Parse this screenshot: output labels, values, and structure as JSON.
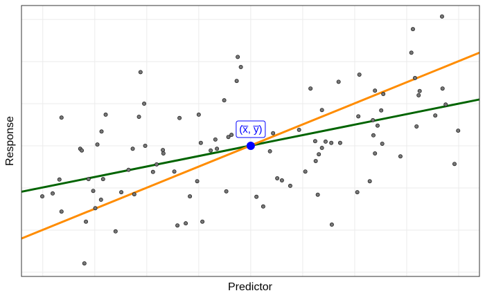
{
  "chart_data": {
    "type": "scatter",
    "x_label": "Predictor",
    "y_label": "Response",
    "xlim": [
      -0.41,
      8.4
    ],
    "ylim": [
      -3.1,
      3.33
    ],
    "x_gridlines": [
      0,
      1,
      2,
      3,
      4,
      5,
      6,
      7,
      8
    ],
    "y_gridlines": [
      -3,
      -2,
      -1,
      0,
      1,
      2,
      3
    ],
    "points": {
      "color": "#777777",
      "x": [
        7.68,
        7.12,
        7.09,
        3.75,
        3.81,
        1.88,
        6.09,
        7.16,
        3.73,
        5.69,
        7.69,
        5.15,
        6.39,
        7.25,
        6.55,
        7.23,
        3.49,
        7.75,
        1.95,
        5.37,
        6.51,
        1.21,
        3.0,
        6.07,
        7.55,
        0.36,
        1.85,
        2.63,
        6.35,
        6.44,
        7.19,
        7.99,
        1.13,
        4.93,
        4.43,
        6.36,
        3.63,
        3.57,
        3.32,
        5.24,
        5.44,
        3.04,
        5.55,
        5.72,
        6.53,
        1.05,
        1.97,
        0.72,
        1.73,
        3.35,
        2.31,
        0.75,
        3.23,
        2.32,
        4.37,
        5.37,
        6.39,
        5.31,
        5.25,
        6.88,
        2.19,
        1.65,
        5.05,
        7.92,
        2.12,
        2.53,
        4.51,
        4.6,
        0.88,
        1.16,
        0.32,
        6.29,
        2.97,
        4.76,
        0.97,
        1.51,
        3.53,
        6.05,
        1.76,
        0.19,
        -0.01,
        5.29,
        2.83,
        4.11,
        1.12,
        4.24,
        1.01,
        0.36,
        0.83,
        3.07,
        2.75,
        2.59,
        5.56,
        1.4,
        0.8
      ],
      "y": [
        3.07,
        2.77,
        2.21,
        2.11,
        1.87,
        1.75,
        1.69,
        1.61,
        1.54,
        1.52,
        1.36,
        1.36,
        1.31,
        1.3,
        1.23,
        1.2,
        1.08,
        0.98,
        1.0,
        0.85,
        0.84,
        0.74,
        0.74,
        0.7,
        0.72,
        0.67,
        0.69,
        0.66,
        0.61,
        0.48,
        0.46,
        0.36,
        0.34,
        0.38,
        0.3,
        0.25,
        0.26,
        0.21,
        0.15,
        0.11,
        0.1,
        0.07,
        0.07,
        0.07,
        0.05,
        0.03,
        0,
        -0.07,
        -0.07,
        -0.07,
        -0.1,
        -0.11,
        -0.11,
        -0.18,
        -0.13,
        -0.05,
        -0.18,
        -0.2,
        -0.36,
        -0.25,
        -0.44,
        -0.57,
        -0.61,
        -0.43,
        -0.62,
        -0.61,
        -0.77,
        -0.82,
        -0.79,
        -0.79,
        -0.8,
        -0.84,
        -0.84,
        -0.95,
        -1.07,
        -1.1,
        -1.08,
        -1.1,
        -1.15,
        -1.13,
        -1.2,
        -1.16,
        -1.2,
        -1.21,
        -1.28,
        -1.44,
        -1.48,
        -1.56,
        -1.8,
        -1.8,
        -1.84,
        -1.89,
        -1.87,
        -2.03,
        -2.79
      ]
    },
    "lines": [
      {
        "color": "#006400",
        "x": [
          -0.41,
          8.4
        ],
        "y": [
          -1.09,
          1.1
        ]
      },
      {
        "color": "#ff8c00",
        "x": [
          -0.41,
          8.4
        ],
        "y": [
          -2.2,
          2.21
        ]
      }
    ],
    "mean_point": {
      "x": 4,
      "y": 0,
      "color": "#0000ff",
      "label": "(x̅, y̅)"
    }
  }
}
